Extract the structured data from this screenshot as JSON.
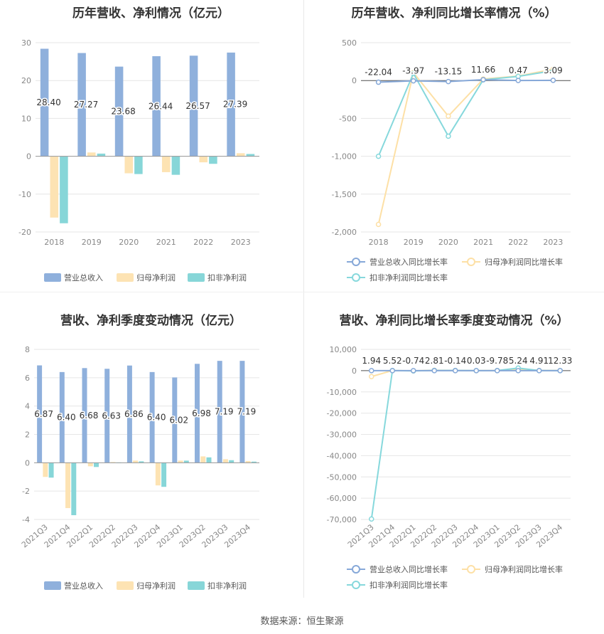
{
  "source_label": "数据来源：恒生聚源",
  "colors": {
    "revenue": "#8fb0dc",
    "netprofit": "#fde3b3",
    "deducted": "#87d6d8",
    "grid": "#e6e6e6",
    "axis": "#999999",
    "text": "#333333",
    "tick": "#888888"
  },
  "chart_data": [
    {
      "id": "annual-amount",
      "type": "bar",
      "title": "历年营收、净利情况（亿元）",
      "categories": [
        "2018",
        "2019",
        "2020",
        "2021",
        "2022",
        "2023"
      ],
      "ylim": [
        -20,
        30
      ],
      "yticks": [
        30,
        20,
        10,
        0,
        -10,
        -20
      ],
      "grid": true,
      "legend_position": "bottom",
      "series": [
        {
          "name": "营业总收入",
          "values": [
            28.4,
            27.27,
            23.68,
            26.44,
            26.57,
            27.39
          ],
          "labels": [
            "28.40",
            "27.27",
            "23.68",
            "26.44",
            "26.57",
            "27.39"
          ]
        },
        {
          "name": "归母净利润",
          "values": [
            -16.2,
            1.0,
            -4.5,
            -4.2,
            -1.6,
            0.8
          ]
        },
        {
          "name": "扣非净利润",
          "values": [
            -17.7,
            0.7,
            -4.7,
            -4.9,
            -2.0,
            0.6
          ]
        }
      ]
    },
    {
      "id": "annual-growth",
      "type": "line",
      "title": "历年营收、净利同比增长率情况（%）",
      "categories": [
        "2018",
        "2019",
        "2020",
        "2021",
        "2022",
        "2023"
      ],
      "ylim": [
        -2000,
        500
      ],
      "yticks": [
        500,
        0,
        -500,
        -1000,
        -1500,
        -2000
      ],
      "ytick_labels": [
        "500",
        "0",
        "-500",
        "-1,000",
        "-1,500",
        "-2,000"
      ],
      "grid": true,
      "legend_position": "bottom",
      "series": [
        {
          "name": "营业总收入同比增长率",
          "values": [
            -22.04,
            -3.97,
            -13.15,
            11.66,
            0.47,
            3.09
          ],
          "labels": [
            "-22.04",
            "-3.97",
            "-13.15",
            "11.66",
            "0.47",
            "3.09"
          ]
        },
        {
          "name": "归母净利润同比增长率",
          "values": [
            -1900,
            105,
            -470,
            20,
            60,
            150
          ]
        },
        {
          "name": "扣非净利润同比增长率",
          "values": [
            -1000,
            95,
            -735,
            10,
            55,
            130
          ]
        }
      ]
    },
    {
      "id": "quarterly-amount",
      "type": "bar",
      "title": "营收、净利季度变动情况（亿元）",
      "categories": [
        "2021Q3",
        "2021Q4",
        "2022Q1",
        "2022Q2",
        "2022Q3",
        "2022Q4",
        "2023Q1",
        "2023Q2",
        "2023Q3",
        "2023Q4"
      ],
      "ylim": [
        -4,
        8
      ],
      "yticks": [
        8,
        6,
        4,
        2,
        0,
        -2,
        -4
      ],
      "grid": true,
      "legend_position": "bottom",
      "series": [
        {
          "name": "营业总收入",
          "values": [
            6.87,
            6.4,
            6.68,
            6.63,
            6.86,
            6.4,
            6.02,
            6.98,
            7.19,
            7.19
          ],
          "labels": [
            "6.87",
            "6.40",
            "6.68",
            "6.63",
            "6.86",
            "6.40",
            "6.02",
            "6.98",
            "7.19",
            "7.19"
          ]
        },
        {
          "name": "归母净利润",
          "values": [
            -1.0,
            -3.2,
            -0.25,
            0.05,
            0.15,
            -1.6,
            0.15,
            0.45,
            0.25,
            0.12
          ]
        },
        {
          "name": "扣非净利润",
          "values": [
            -1.05,
            -3.7,
            -0.3,
            0.02,
            0.1,
            -1.7,
            0.15,
            0.38,
            0.18,
            0.08
          ]
        }
      ]
    },
    {
      "id": "quarterly-growth",
      "type": "line",
      "title": "营收、净利同比增长率季度变动情况（%）",
      "categories": [
        "2021Q3",
        "2021Q4",
        "2022Q1",
        "2022Q2",
        "2022Q3",
        "2022Q4",
        "2023Q1",
        "2023Q2",
        "2023Q3",
        "2023Q4"
      ],
      "ylim": [
        -70000,
        10000
      ],
      "yticks": [
        10000,
        0,
        -10000,
        -20000,
        -30000,
        -40000,
        -50000,
        -60000,
        -70000
      ],
      "ytick_labels": [
        "10,000",
        "0",
        "-10,000",
        "-20,000",
        "-30,000",
        "-40,000",
        "-50,000",
        "-60,000",
        "-70,000"
      ],
      "grid": true,
      "legend_position": "bottom",
      "series": [
        {
          "name": "营业总收入同比增长率",
          "values": [
            1.94,
            5.52,
            -0.74,
            2.81,
            -0.14,
            0.03,
            -9.78,
            5.24,
            4.91,
            12.33
          ],
          "labels": [
            "1.94",
            "5.52",
            "-0.74",
            "2.81",
            "-0.14",
            "0.03",
            "-9.78",
            "5.24",
            "4.91",
            "12.33"
          ]
        },
        {
          "name": "归母净利润同比增长率",
          "values": [
            -2800,
            50,
            -100,
            150,
            100,
            20,
            80,
            600,
            80,
            40
          ]
        },
        {
          "name": "扣非净利润同比增长率",
          "values": [
            -69800,
            40,
            -120,
            100,
            80,
            10,
            60,
            1200,
            50,
            20
          ]
        }
      ]
    }
  ]
}
